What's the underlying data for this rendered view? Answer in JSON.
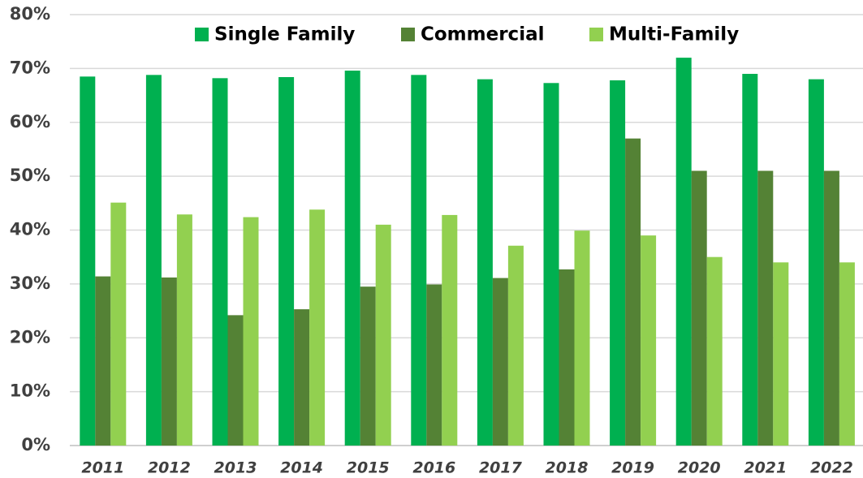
{
  "chart_data": {
    "type": "bar",
    "categories": [
      "2011",
      "2012",
      "2013",
      "2014",
      "2015",
      "2016",
      "2017",
      "2018",
      "2019",
      "2020",
      "2021",
      "2022"
    ],
    "series": [
      {
        "name": "Single Family",
        "color": "#00b050",
        "values": [
          68.5,
          68.8,
          68.2,
          68.4,
          69.6,
          68.8,
          68.0,
          67.3,
          67.8,
          72.0,
          69.0,
          68.0
        ]
      },
      {
        "name": "Commercial",
        "color": "#548235",
        "values": [
          31.4,
          31.2,
          24.2,
          25.3,
          29.5,
          29.9,
          31.1,
          32.7,
          57.0,
          51.0,
          51.0,
          51.0
        ]
      },
      {
        "name": "Multi-Family",
        "color": "#92d050",
        "values": [
          45.1,
          42.9,
          42.4,
          43.8,
          41.0,
          42.8,
          37.1,
          39.9,
          39.0,
          35.0,
          34.0,
          34.0
        ]
      }
    ],
    "ylim": [
      0,
      80
    ],
    "yticks": [
      {
        "value": 0,
        "label": "0%"
      },
      {
        "value": 10,
        "label": "10%"
      },
      {
        "value": 20,
        "label": "20%"
      },
      {
        "value": 30,
        "label": "30%"
      },
      {
        "value": 40,
        "label": "40%"
      },
      {
        "value": 50,
        "label": "50%"
      },
      {
        "value": 60,
        "label": "60%"
      },
      {
        "value": 70,
        "label": "70%"
      },
      {
        "value": 80,
        "label": "80%"
      }
    ],
    "grid": true,
    "legend": "top"
  }
}
